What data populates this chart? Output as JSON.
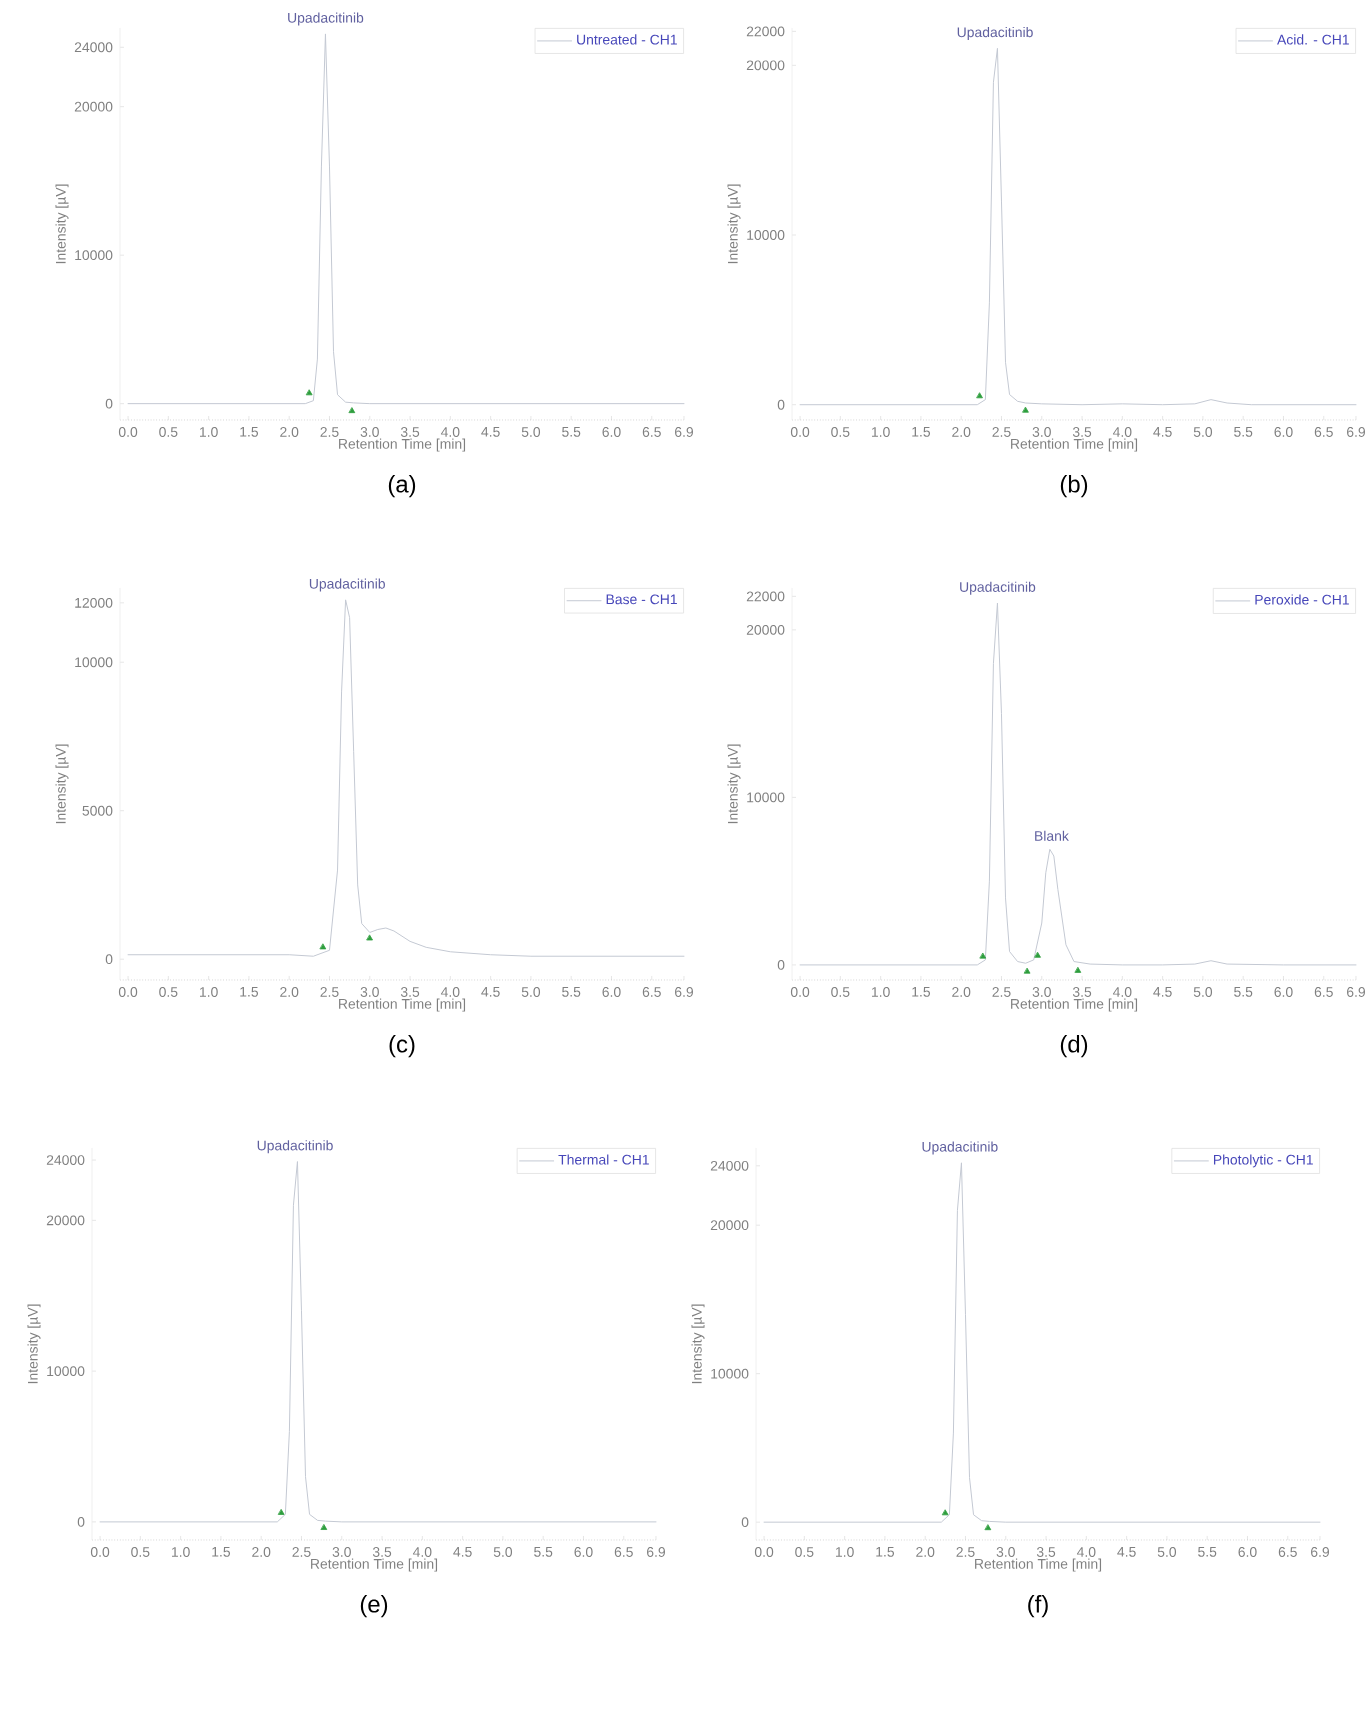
{
  "chart_data": [
    {
      "type": "line",
      "title": "(a)",
      "xlabel": "Retention Time [min]",
      "ylabel": "Intensity [µV]",
      "xlim": [
        -0.1,
        6.9
      ],
      "xticks": [
        {
          "value": 0,
          "label": "0.0"
        },
        0.5,
        {
          "value": 1,
          "label": "1.0"
        },
        1.5,
        {
          "value": 2,
          "label": "2.0"
        },
        2.5,
        {
          "value": 3,
          "label": "3.0"
        },
        3.5,
        {
          "value": 4,
          "label": "4.0"
        },
        4.5,
        {
          "value": 5,
          "label": "5.0"
        },
        5.5,
        {
          "value": 6,
          "label": "6.0"
        },
        6.5,
        6.9
      ],
      "ylim": [
        -1100,
        25300
      ],
      "yticks": [
        0,
        10000,
        20000,
        24000
      ],
      "legend": "top right",
      "series": [
        {
          "name": "Untreated - CH1",
          "color": "#c4c9d3",
          "x": [
            0,
            0.5,
            1,
            1.5,
            2,
            2.2,
            2.3,
            2.35,
            2.4,
            2.45,
            2.5,
            2.55,
            2.6,
            2.7,
            2.8,
            3,
            3.5,
            4,
            5,
            6,
            6.9
          ],
          "values": [
            0,
            0,
            0,
            0,
            0,
            0,
            200,
            3000,
            16000,
            24900,
            16000,
            3500,
            600,
            100,
            50,
            0,
            0,
            0,
            0,
            0,
            0
          ]
        },
        {
          "type": "scatter",
          "color": "#2e9e3e",
          "marker": "triangle",
          "x": [
            2.25,
            2.78
          ],
          "values": [
            700,
            -500
          ]
        }
      ],
      "annotations": [
        {
          "text": "Upadacitinib",
          "x": 2.45,
          "y": 24900
        }
      ]
    },
    {
      "type": "line",
      "title": "(b)",
      "xlabel": "Retention Time [min]",
      "ylabel": "Intensity [µV]",
      "xlim": [
        -0.1,
        6.9
      ],
      "xticks": [
        {
          "value": 0,
          "label": "0.0"
        },
        0.5,
        {
          "value": 1,
          "label": "1.0"
        },
        1.5,
        {
          "value": 2,
          "label": "2.0"
        },
        2.5,
        {
          "value": 3,
          "label": "3.0"
        },
        3.5,
        {
          "value": 4,
          "label": "4.0"
        },
        4.5,
        {
          "value": 5,
          "label": "5.0"
        },
        5.5,
        {
          "value": 6,
          "label": "6.0"
        },
        6.5,
        6.9
      ],
      "ylim": [
        -900,
        22200
      ],
      "yticks": [
        0,
        10000,
        20000,
        22000
      ],
      "legend": "top right",
      "series": [
        {
          "name": "Acid. - CH1",
          "color": "#c4c9d3",
          "x": [
            0,
            0.5,
            1,
            1.5,
            2,
            2.2,
            2.3,
            2.35,
            2.4,
            2.45,
            2.5,
            2.55,
            2.6,
            2.7,
            2.8,
            3,
            3.5,
            4,
            4.5,
            4.9,
            5.1,
            5.3,
            5.6,
            6,
            6.9
          ],
          "values": [
            0,
            0,
            0,
            0,
            0,
            0,
            300,
            6000,
            19000,
            21000,
            12000,
            2500,
            600,
            200,
            100,
            50,
            0,
            50,
            0,
            50,
            300,
            100,
            0,
            0,
            0
          ]
        },
        {
          "type": "scatter",
          "color": "#2e9e3e",
          "marker": "triangle",
          "x": [
            2.23,
            2.8
          ],
          "values": [
            500,
            -350
          ]
        }
      ],
      "annotations": [
        {
          "text": "Upadacitinib",
          "x": 2.42,
          "y": 21000
        }
      ]
    },
    {
      "type": "line",
      "title": "(c)",
      "xlabel": "Retention Time [min]",
      "ylabel": "Intensity [µV]",
      "xlim": [
        -0.1,
        6.9
      ],
      "xticks": [
        {
          "value": 0,
          "label": "0.0"
        },
        0.5,
        {
          "value": 1,
          "label": "1.0"
        },
        1.5,
        {
          "value": 2,
          "label": "2.0"
        },
        2.5,
        {
          "value": 3,
          "label": "3.0"
        },
        3.5,
        {
          "value": 4,
          "label": "4.0"
        },
        4.5,
        {
          "value": 5,
          "label": "5.0"
        },
        5.5,
        {
          "value": 6,
          "label": "6.0"
        },
        6.5,
        6.9
      ],
      "ylim": [
        -700,
        12500
      ],
      "yticks": [
        0,
        5000,
        10000,
        12000
      ],
      "legend": "top right",
      "series": [
        {
          "name": "Base - CH1",
          "color": "#c4c9d3",
          "x": [
            0,
            0.5,
            1,
            1.5,
            2,
            2.3,
            2.5,
            2.6,
            2.65,
            2.7,
            2.75,
            2.8,
            2.85,
            2.9,
            3,
            3.1,
            3.2,
            3.3,
            3.5,
            3.7,
            4,
            4.5,
            5,
            6,
            6.9
          ],
          "values": [
            150,
            150,
            150,
            150,
            150,
            100,
            300,
            3000,
            9000,
            12100,
            11500,
            7000,
            2500,
            1200,
            900,
            1000,
            1050,
            950,
            600,
            400,
            250,
            150,
            100,
            100,
            100
          ]
        },
        {
          "type": "scatter",
          "color": "#2e9e3e",
          "marker": "triangle",
          "x": [
            2.42,
            3.0
          ],
          "values": [
            400,
            700
          ]
        }
      ],
      "annotations": [
        {
          "text": "Upadacitinib",
          "x": 2.72,
          "y": 12100
        }
      ]
    },
    {
      "type": "line",
      "title": "(d)",
      "xlabel": "Retention Time [min]",
      "ylabel": "Intensity [µV]",
      "xlim": [
        -0.1,
        6.9
      ],
      "xticks": [
        {
          "value": 0,
          "label": "0.0"
        },
        0.5,
        {
          "value": 1,
          "label": "1.0"
        },
        1.5,
        {
          "value": 2,
          "label": "2.0"
        },
        2.5,
        {
          "value": 3,
          "label": "3.0"
        },
        3.5,
        {
          "value": 4,
          "label": "4.0"
        },
        4.5,
        {
          "value": 5,
          "label": "5.0"
        },
        5.5,
        {
          "value": 6,
          "label": "6.0"
        },
        6.5,
        6.9
      ],
      "ylim": [
        -900,
        22500
      ],
      "yticks": [
        0,
        10000,
        20000,
        22000
      ],
      "legend": "top right",
      "series": [
        {
          "name": "Peroxide - CH1",
          "color": "#c4c9d3",
          "x": [
            0,
            0.5,
            1,
            1.5,
            2,
            2.2,
            2.3,
            2.35,
            2.4,
            2.45,
            2.5,
            2.55,
            2.6,
            2.7,
            2.8,
            2.9,
            3.0,
            3.05,
            3.1,
            3.15,
            3.2,
            3.3,
            3.4,
            3.6,
            4,
            4.5,
            4.9,
            5.1,
            5.3,
            6,
            6.9
          ],
          "values": [
            0,
            0,
            0,
            0,
            0,
            0,
            300,
            5000,
            18000,
            21600,
            15000,
            4000,
            800,
            200,
            100,
            300,
            2500,
            5500,
            6900,
            6500,
            4500,
            1200,
            200,
            50,
            0,
            0,
            50,
            250,
            50,
            0,
            0
          ]
        },
        {
          "type": "scatter",
          "color": "#2e9e3e",
          "marker": "triangle",
          "x": [
            2.27,
            2.82,
            2.95,
            3.45
          ],
          "values": [
            500,
            -400,
            550,
            -350
          ]
        }
      ],
      "annotations": [
        {
          "text": "Upadacitinib",
          "x": 2.45,
          "y": 21600
        },
        {
          "text": "Blank",
          "x": 3.12,
          "y": 6900
        }
      ]
    },
    {
      "type": "line",
      "title": "(e)",
      "xlabel": "Retention Time [min]",
      "ylabel": "Intensity [µV]",
      "xlim": [
        -0.1,
        6.9
      ],
      "xticks": [
        {
          "value": 0,
          "label": "0.0"
        },
        0.5,
        {
          "value": 1,
          "label": "1.0"
        },
        1.5,
        {
          "value": 2,
          "label": "2.0"
        },
        2.5,
        {
          "value": 3,
          "label": "3.0"
        },
        3.5,
        {
          "value": 4,
          "label": "4.0"
        },
        4.5,
        {
          "value": 5,
          "label": "5.0"
        },
        5.5,
        {
          "value": 6,
          "label": "6.0"
        },
        6.5,
        6.9
      ],
      "ylim": [
        -1200,
        24800
      ],
      "yticks": [
        0,
        10000,
        20000,
        24000
      ],
      "legend": "top right",
      "series": [
        {
          "name": "Thermal - CH1",
          "color": "#c4c9d3",
          "x": [
            0,
            0.5,
            1,
            1.5,
            2,
            2.2,
            2.3,
            2.35,
            2.4,
            2.45,
            2.5,
            2.55,
            2.6,
            2.7,
            2.8,
            3,
            3.5,
            4,
            5,
            6,
            6.9
          ],
          "values": [
            0,
            0,
            0,
            0,
            0,
            0,
            500,
            6000,
            21000,
            23900,
            14000,
            3000,
            500,
            100,
            50,
            0,
            0,
            0,
            0,
            0,
            0
          ]
        },
        {
          "type": "scatter",
          "color": "#2e9e3e",
          "marker": "triangle",
          "x": [
            2.25,
            2.78
          ],
          "values": [
            600,
            -400
          ]
        }
      ],
      "annotations": [
        {
          "text": "Upadacitinib",
          "x": 2.42,
          "y": 23900
        }
      ]
    },
    {
      "type": "line",
      "title": "(f)",
      "xlabel": "Retention Time [min]",
      "ylabel": "Intensity [µV]",
      "xlim": [
        -0.1,
        6.9
      ],
      "xticks": [
        {
          "value": 0,
          "label": "0.0"
        },
        0.5,
        {
          "value": 1,
          "label": "1.0"
        },
        1.5,
        {
          "value": 2,
          "label": "2.0"
        },
        2.5,
        {
          "value": 3,
          "label": "3.0"
        },
        3.5,
        {
          "value": 4,
          "label": "4.0"
        },
        4.5,
        {
          "value": 5,
          "label": "5.0"
        },
        5.5,
        {
          "value": 6,
          "label": "6.0"
        },
        6.5,
        6.9
      ],
      "ylim": [
        -1200,
        25200
      ],
      "yticks": [
        0,
        10000,
        20000,
        24000
      ],
      "legend": "top right",
      "series": [
        {
          "name": "Photolytic - CH1",
          "color": "#c4c9d3",
          "x": [
            0,
            0.5,
            1,
            1.5,
            2,
            2.2,
            2.3,
            2.35,
            2.4,
            2.45,
            2.5,
            2.55,
            2.6,
            2.7,
            2.8,
            3,
            3.5,
            4,
            5,
            6,
            6.9
          ],
          "values": [
            0,
            0,
            0,
            0,
            0,
            0,
            500,
            6000,
            21000,
            24200,
            14000,
            3000,
            500,
            100,
            50,
            0,
            0,
            0,
            0,
            0,
            0
          ]
        },
        {
          "type": "scatter",
          "color": "#2e9e3e",
          "marker": "triangle",
          "x": [
            2.25,
            2.78
          ],
          "values": [
            600,
            -400
          ]
        }
      ],
      "annotations": [
        {
          "text": "Upadacitinib",
          "x": 2.43,
          "y": 24200
        }
      ]
    }
  ]
}
